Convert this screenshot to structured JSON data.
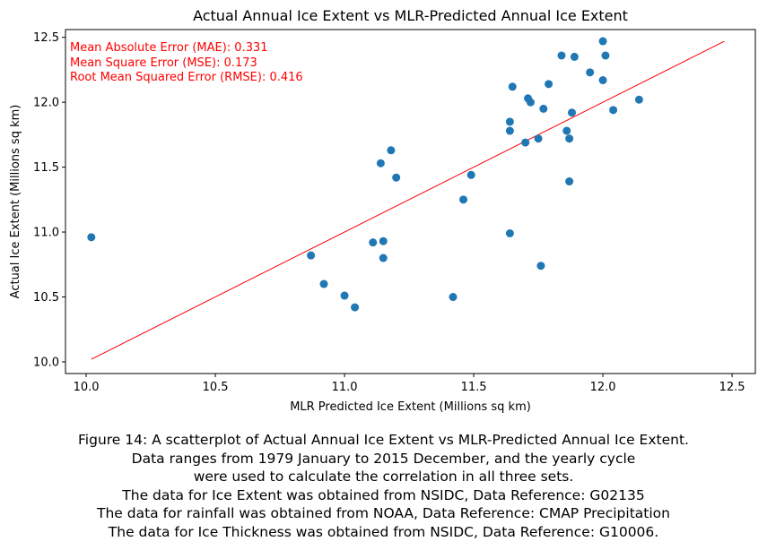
{
  "chart_data": {
    "type": "scatter",
    "title": "Actual Annual Ice Extent vs MLR-Predicted Annual Ice Extent",
    "xlabel": "MLR Predicted Ice Extent (Millions sq km)",
    "ylabel": "Actual Ice Extent (Millions sq km)",
    "xlim": [
      9.92,
      12.59
    ],
    "ylim": [
      9.91,
      12.56
    ],
    "xticks": [
      "10.0",
      "10.5",
      "11.0",
      "11.5",
      "12.0",
      "12.5"
    ],
    "yticks": [
      "10.0",
      "10.5",
      "11.0",
      "11.5",
      "12.0",
      "12.5"
    ],
    "grid": false,
    "point_color": "#1f77b4",
    "fit_line_color": "#ff0000",
    "fit_line": {
      "x": [
        10.02,
        12.47
      ],
      "y": [
        10.02,
        12.47
      ]
    },
    "points": [
      {
        "x": 10.02,
        "y": 10.96
      },
      {
        "x": 10.87,
        "y": 10.82
      },
      {
        "x": 10.92,
        "y": 10.6
      },
      {
        "x": 11.0,
        "y": 10.51
      },
      {
        "x": 11.04,
        "y": 10.42
      },
      {
        "x": 11.11,
        "y": 10.92
      },
      {
        "x": 11.15,
        "y": 10.93
      },
      {
        "x": 11.15,
        "y": 10.8
      },
      {
        "x": 11.14,
        "y": 11.53
      },
      {
        "x": 11.18,
        "y": 11.63
      },
      {
        "x": 11.2,
        "y": 11.42
      },
      {
        "x": 11.42,
        "y": 10.5
      },
      {
        "x": 11.46,
        "y": 11.25
      },
      {
        "x": 11.49,
        "y": 11.44
      },
      {
        "x": 11.64,
        "y": 11.85
      },
      {
        "x": 11.64,
        "y": 11.78
      },
      {
        "x": 11.64,
        "y": 10.99
      },
      {
        "x": 11.65,
        "y": 12.12
      },
      {
        "x": 11.7,
        "y": 11.69
      },
      {
        "x": 11.71,
        "y": 12.03
      },
      {
        "x": 11.72,
        "y": 12.0
      },
      {
        "x": 11.75,
        "y": 11.72
      },
      {
        "x": 11.76,
        "y": 10.74
      },
      {
        "x": 11.77,
        "y": 11.95
      },
      {
        "x": 11.79,
        "y": 12.14
      },
      {
        "x": 11.84,
        "y": 12.36
      },
      {
        "x": 11.86,
        "y": 11.78
      },
      {
        "x": 11.87,
        "y": 11.72
      },
      {
        "x": 11.87,
        "y": 11.39
      },
      {
        "x": 11.88,
        "y": 11.92
      },
      {
        "x": 11.89,
        "y": 12.35
      },
      {
        "x": 11.95,
        "y": 12.23
      },
      {
        "x": 12.0,
        "y": 12.47
      },
      {
        "x": 12.0,
        "y": 12.17
      },
      {
        "x": 12.01,
        "y": 12.36
      },
      {
        "x": 12.04,
        "y": 11.94
      },
      {
        "x": 12.14,
        "y": 12.02
      }
    ],
    "annotations": [
      "Mean Absolute Error (MAE): 0.331",
      "Mean Square Error (MSE): 0.173",
      "Root Mean Squared Error (RMSE): 0.416"
    ],
    "annotation_color": "#ff0000"
  },
  "caption": [
    "Figure 14: A scatterplot of Actual Annual Ice Extent vs MLR-Predicted Annual Ice Extent.",
    "Data ranges from 1979 January to 2015 December, and the yearly cycle",
    "were used to calculate the correlation in all three sets.",
    "The data for Ice Extent was obtained from NSIDC, Data Reference: G02135",
    "The data for rainfall was obtained from NOAA, Data Reference: CMAP Precipitation",
    "The data for Ice Thickness was obtained from NSIDC, Data Reference: G10006."
  ]
}
